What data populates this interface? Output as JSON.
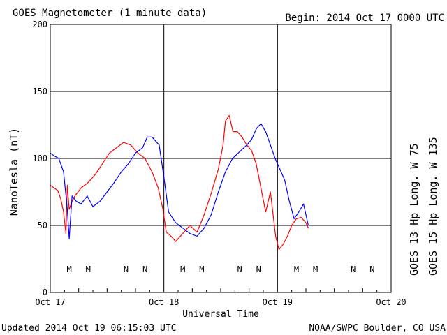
{
  "chart_data": {
    "type": "line",
    "title": "GOES Magnetometer (1 minute data)",
    "begin": "Begin:  2014 Oct 17 0000 UTC",
    "xlabel": "Universal Time",
    "ylabel": "NanoTesla (nT)",
    "x_unit": "hours since Oct 17 0000 UTC",
    "xlim": [
      0,
      72
    ],
    "ylim": [
      0,
      200
    ],
    "x_ticks": [
      0,
      24,
      48,
      72
    ],
    "x_tick_labels": [
      "Oct 17",
      "Oct 18",
      "Oct 19",
      "Oct 20"
    ],
    "y_ticks": [
      0,
      50,
      100,
      150,
      200
    ],
    "y_tick_labels": [
      "0",
      "50",
      "100",
      "150",
      "200"
    ],
    "grid": true,
    "legend_placement": "right-vertical",
    "series": [
      {
        "name": "GOES 13 Hp",
        "longitude": "Long. W 75",
        "color": "#ff0000",
        "x": [
          0,
          0.8,
          1.6,
          2.2,
          2.8,
          3.3,
          3.6,
          4.0,
          4.6,
          5.2,
          6.5,
          8,
          9.5,
          11,
          12.5,
          14,
          15.5,
          17,
          18.5,
          20,
          21.5,
          22.8,
          23.8,
          24.5,
          25.5,
          26.5,
          28,
          29.5,
          31,
          32.5,
          34,
          35.5,
          36.5,
          37,
          37.8,
          38.6,
          39.5,
          40.5,
          41.5,
          42.5,
          43.5,
          44.5,
          45.5,
          46.5,
          47.6,
          48.3,
          49.2,
          50.1,
          51,
          52,
          53,
          54,
          54.5
        ],
        "values": [
          80,
          78,
          76,
          70,
          60,
          44,
          80,
          62,
          68,
          72,
          78,
          82,
          88,
          96,
          104,
          108,
          112,
          110,
          104,
          100,
          90,
          78,
          62,
          45,
          42,
          38,
          44,
          50,
          45,
          58,
          74,
          92,
          110,
          128,
          132,
          120,
          120,
          116,
          110,
          106,
          96,
          78,
          60,
          75,
          42,
          32,
          36,
          42,
          50,
          55,
          56,
          52,
          48
        ]
      },
      {
        "name": "GOES 15 Hp",
        "longitude": "Long. W 135",
        "color": "#0000ff",
        "x": [
          0,
          0.8,
          1.8,
          2.8,
          3.6,
          4.0,
          4.6,
          5.5,
          6.5,
          7.8,
          9,
          10.5,
          12,
          13.5,
          15,
          16.5,
          18,
          19.5,
          20.5,
          21.5,
          23,
          24,
          25,
          26.5,
          28,
          29.5,
          31,
          32.5,
          34,
          35.5,
          37,
          38.5,
          40,
          41.5,
          42.5,
          43.5,
          44.5,
          45.5,
          46.5,
          47.5,
          48.5,
          49.5,
          50.5,
          51.5,
          52.5,
          53.5,
          54.5
        ],
        "values": [
          104,
          102,
          100,
          90,
          62,
          40,
          72,
          68,
          66,
          72,
          64,
          68,
          75,
          82,
          90,
          96,
          104,
          108,
          116,
          116,
          110,
          86,
          60,
          52,
          48,
          44,
          42,
          48,
          58,
          75,
          90,
          100,
          105,
          110,
          114,
          122,
          126,
          120,
          110,
          100,
          92,
          84,
          68,
          55,
          60,
          66,
          50
        ]
      }
    ],
    "markers": [
      {
        "label": "M",
        "x": 4.0,
        "series": 0
      },
      {
        "label": "M",
        "x": 8.0,
        "series": 1
      },
      {
        "label": "N",
        "x": 16.0,
        "series": 0
      },
      {
        "label": "N",
        "x": 20.0,
        "series": 1
      },
      {
        "label": "M",
        "x": 28.0,
        "series": 0
      },
      {
        "label": "M",
        "x": 32.0,
        "series": 1
      },
      {
        "label": "N",
        "x": 40.0,
        "series": 0
      },
      {
        "label": "N",
        "x": 44.0,
        "series": 1
      },
      {
        "label": "M",
        "x": 52.0,
        "series": 0
      },
      {
        "label": "M",
        "x": 56.0,
        "series": 1
      },
      {
        "label": "N",
        "x": 64.0,
        "series": 0
      },
      {
        "label": "N",
        "x": 68.0,
        "series": 1
      }
    ]
  },
  "footer": {
    "updated": "Updated 2014 Oct 19 06:15:03 UTC",
    "credit": "NOAA/SWPC Boulder, CO USA"
  }
}
